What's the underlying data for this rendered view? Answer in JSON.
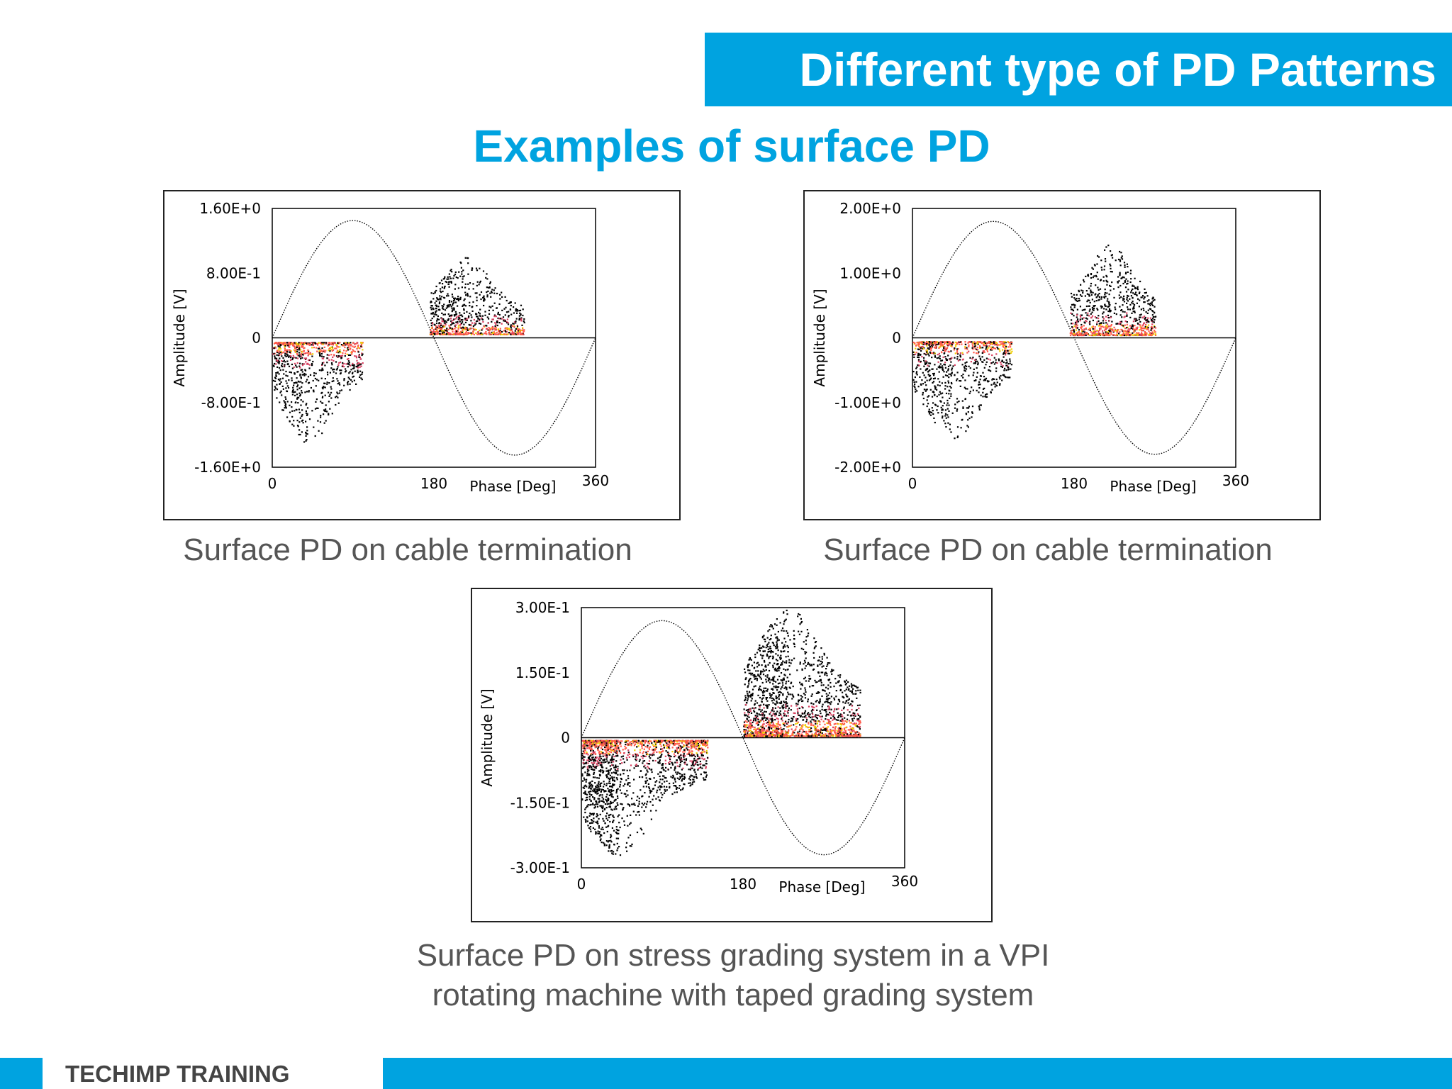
{
  "header": {
    "title": "Different type of PD Patterns"
  },
  "subtitle": "Examples of surface PD",
  "footer": {
    "label": "TECHIMP TRAINING"
  },
  "colors": {
    "accent": "#00a3e0",
    "caption_gray": "#555555",
    "pd_core": "#ff5a4a",
    "pd_center": "#f0d000"
  },
  "chart_data": [
    {
      "type": "scatter",
      "caption": "Surface PD on cable termination",
      "xlabel": "Phase [Deg]",
      "ylabel": "Amplitude [V]",
      "xlim": [
        0,
        360
      ],
      "ylim": [
        -1.6,
        1.6
      ],
      "x_ticks": [
        "0",
        "180",
        "360"
      ],
      "y_ticks": [
        "1.60E+0",
        "8.00E-1",
        "0",
        "-8.00E-1",
        "-1.60E+0"
      ],
      "sine_amplitude": 1.45,
      "clusters": [
        {
          "phase_range": [
            0,
            100
          ],
          "amp_range": [
            -1.3,
            -0.05
          ],
          "peak_phase": 40,
          "sign": -1
        },
        {
          "phase_range": [
            175,
            280
          ],
          "amp_range": [
            0.05,
            1.0
          ],
          "peak_phase": 215,
          "sign": 1
        }
      ]
    },
    {
      "type": "scatter",
      "caption": "Surface PD on cable termination",
      "xlabel": "Phase [Deg]",
      "ylabel": "Amplitude [V]",
      "xlim": [
        0,
        360
      ],
      "ylim": [
        -2.0,
        2.0
      ],
      "x_ticks": [
        "0",
        "180",
        "360"
      ],
      "y_ticks": [
        "2.00E+0",
        "1.00E+0",
        "0",
        "-1.00E+0",
        "-2.00E+0"
      ],
      "sine_amplitude": 1.8,
      "clusters": [
        {
          "phase_range": [
            0,
            110
          ],
          "amp_range": [
            -1.55,
            -0.05
          ],
          "peak_phase": 45,
          "sign": -1
        },
        {
          "phase_range": [
            175,
            270
          ],
          "amp_range": [
            0.05,
            1.45
          ],
          "peak_phase": 220,
          "sign": 1
        }
      ]
    },
    {
      "type": "scatter",
      "caption_lines": [
        "Surface PD on stress grading system in a VPI",
        "rotating machine with taped grading system"
      ],
      "xlabel": "Phase [Deg]",
      "ylabel": "Amplitude [V]",
      "xlim": [
        0,
        360
      ],
      "ylim": [
        -0.3,
        0.3
      ],
      "x_ticks": [
        "0",
        "180",
        "360"
      ],
      "y_ticks": [
        "3.00E-1",
        "1.50E-1",
        "0",
        "-1.50E-1",
        "-3.00E-1"
      ],
      "sine_amplitude": 0.27,
      "clusters": [
        {
          "phase_range": [
            0,
            140
          ],
          "amp_range": [
            -0.27,
            -0.005
          ],
          "peak_phase": 40,
          "sign": -1
        },
        {
          "phase_range": [
            180,
            310
          ],
          "amp_range": [
            0.005,
            0.3
          ],
          "peak_phase": 230,
          "sign": 1
        }
      ]
    }
  ]
}
